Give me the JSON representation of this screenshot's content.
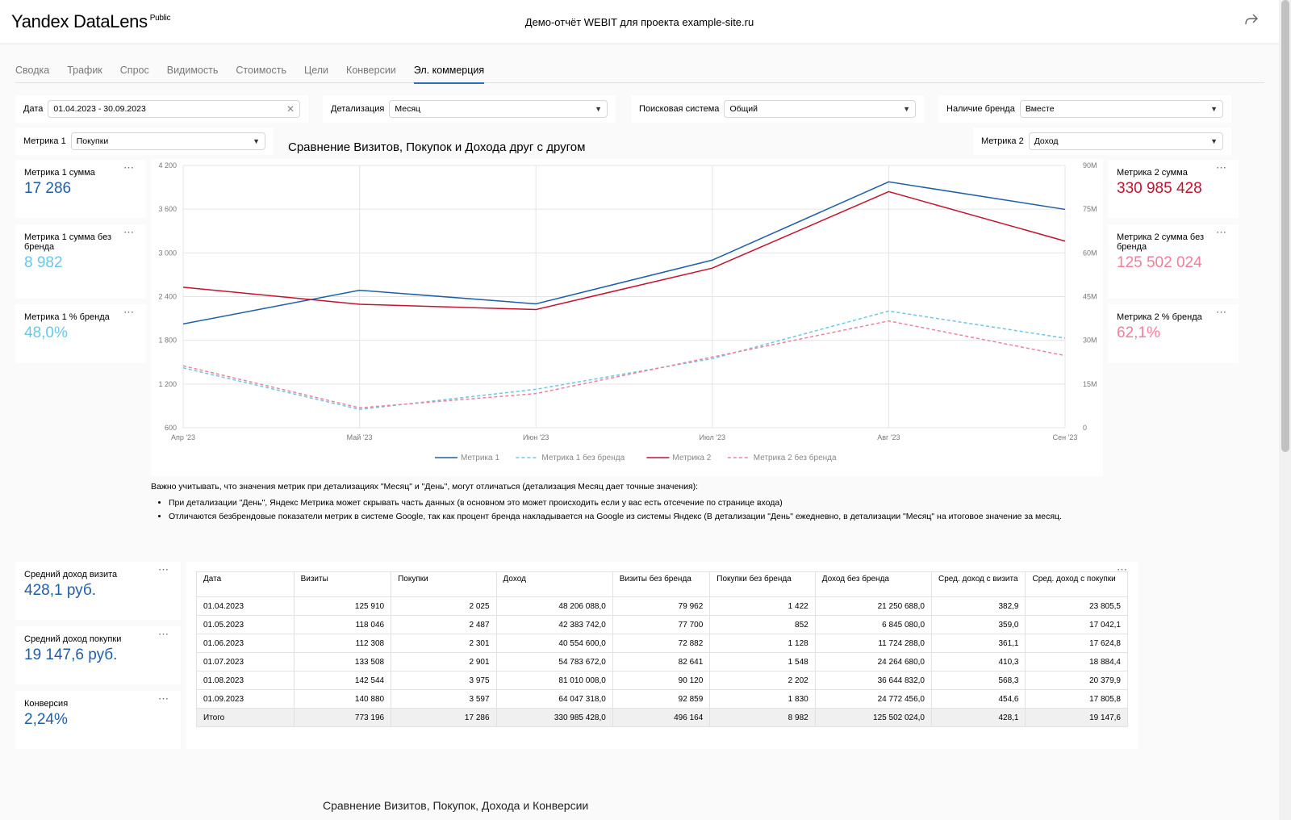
{
  "header": {
    "logo": "Yandex DataLens",
    "logo_badge": "Public",
    "title": "Демо-отчёт WEBIT для проекта example-site.ru"
  },
  "tabs": [
    "Сводка",
    "Трафик",
    "Спрос",
    "Видимость",
    "Стоимость",
    "Цели",
    "Конверсии",
    "Эл. коммерция"
  ],
  "active_tab_index": 7,
  "filters": {
    "date": {
      "label": "Дата",
      "value": "01.04.2023 - 30.09.2023"
    },
    "detail": {
      "label": "Детализация",
      "value": "Месяц"
    },
    "search": {
      "label": "Поисковая система",
      "value": "Общий"
    },
    "brand": {
      "label": "Наличие бренда",
      "value": "Вместе"
    },
    "metric1": {
      "label": "Метрика 1",
      "value": "Покупки"
    },
    "metric2": {
      "label": "Метрика 2",
      "value": "Доход"
    }
  },
  "kpis_left": [
    {
      "title": "Метрика 1 сумма",
      "value": "17 286",
      "color": "#1f5fa8"
    },
    {
      "title": "Метрика 1 сумма без бренда",
      "value": "8 982",
      "color": "#6cc6e8"
    },
    {
      "title": "Метрика 1 % бренда",
      "value": "48,0%",
      "color": "#6cc6e8"
    }
  ],
  "kpis_right": [
    {
      "title": "Метрика 2 сумма",
      "value": "330 985 428",
      "color": "#c4122f"
    },
    {
      "title": "Метрика 2 сумма без бренда",
      "value": "125 502 024",
      "color": "#f0809a"
    },
    {
      "title": "Метрика 2 % бренда",
      "value": "62,1%",
      "color": "#f0809a"
    }
  ],
  "kpis_bottom": [
    {
      "title": "Средний доход визита",
      "value": "428,1 руб.",
      "color": "#1f5fa8"
    },
    {
      "title": "Средний доход покупки",
      "value": "19 147,6 руб.",
      "color": "#1f5fa8"
    },
    {
      "title": "Конверсия",
      "value": "2,24%",
      "color": "#1f5fa8"
    }
  ],
  "chart_title": "Сравнение Визитов, Покупок и Дохода друг с другом",
  "chart_data": {
    "type": "line",
    "x": [
      "Апр '23",
      "Май '23",
      "Июн '23",
      "Июл '23",
      "Авг '23",
      "Сен '23"
    ],
    "y_left_ticks": [
      "600",
      "1 200",
      "1 800",
      "2 400",
      "3 000",
      "3 600",
      "4 200"
    ],
    "y_right_ticks": [
      "0",
      "15M",
      "30M",
      "45M",
      "60M",
      "75M",
      "90M"
    ],
    "ylim_left": [
      600,
      4200
    ],
    "ylim_right": [
      0,
      90000000
    ],
    "grid": true,
    "legend_position": "bottom",
    "series": [
      {
        "name": "Метрика 1",
        "axis": "left",
        "color": "#1f5fa8",
        "dashed": false,
        "values": [
          2025,
          2487,
          2301,
          2901,
          3975,
          3597
        ]
      },
      {
        "name": "Метрика 1 без бренда",
        "axis": "left",
        "color": "#6cc6e8",
        "dashed": true,
        "values": [
          1422,
          852,
          1128,
          1548,
          2202,
          1830
        ]
      },
      {
        "name": "Метрика 2",
        "axis": "right",
        "color": "#c4122f",
        "dashed": false,
        "values": [
          48206088,
          42383742,
          40554600,
          54783672,
          81010008,
          64047318
        ]
      },
      {
        "name": "Метрика 2 без бренда",
        "axis": "right",
        "color": "#f0809a",
        "dashed": true,
        "values": [
          21250688,
          6845080,
          11724288,
          24264680,
          36644832,
          24772456
        ]
      }
    ]
  },
  "note": {
    "main": "Важно учитывать, что значения метрик при детализациях \"Месяц\" и \"День\", могут отличаться (детализация Месяц дает точные значения):",
    "items": [
      "При детализации \"День\", Яндекс Метрика может скрывать часть данных (в основном это может происходить если у вас есть отсечение по странице входа)",
      "Отличаются безбрендовые показатели метрик в системе Google, так как процент бренда накладывается на Google из системы Яндекс (В детализации \"День\" ежедневно, в детализации \"Месяц\" на итоговое значение за месяц."
    ]
  },
  "table": {
    "headers": [
      "Дата",
      "Визиты",
      "Покупки",
      "Доход",
      "Визиты без бренда",
      "Покупки без бренда",
      "Доход без бренда",
      "Сред. доход с визита",
      "Сред. доход с покупки"
    ],
    "rows": [
      [
        "01.04.2023",
        "125 910",
        "2 025",
        "48 206 088,0",
        "79 962",
        "1 422",
        "21 250 688,0",
        "382,9",
        "23 805,5"
      ],
      [
        "01.05.2023",
        "118 046",
        "2 487",
        "42 383 742,0",
        "77 700",
        "852",
        "6 845 080,0",
        "359,0",
        "17 042,1"
      ],
      [
        "01.06.2023",
        "112 308",
        "2 301",
        "40 554 600,0",
        "72 882",
        "1 128",
        "11 724 288,0",
        "361,1",
        "17 624,8"
      ],
      [
        "01.07.2023",
        "133 508",
        "2 901",
        "54 783 672,0",
        "82 641",
        "1 548",
        "24 264 680,0",
        "410,3",
        "18 884,4"
      ],
      [
        "01.08.2023",
        "142 544",
        "3 975",
        "81 010 008,0",
        "90 120",
        "2 202",
        "36 644 832,0",
        "568,3",
        "20 379,9"
      ],
      [
        "01.09.2023",
        "140 880",
        "3 597",
        "64 047 318,0",
        "92 859",
        "1 830",
        "24 772 456,0",
        "454,6",
        "17 805,8"
      ]
    ],
    "total": [
      "Итого",
      "773 196",
      "17 286",
      "330 985 428,0",
      "496 164",
      "8 982",
      "125 502 024,0",
      "428,1",
      "19 147,6"
    ]
  },
  "bottom_text": "Сравнение Визитов, Покупок, Дохода и Конверсии"
}
